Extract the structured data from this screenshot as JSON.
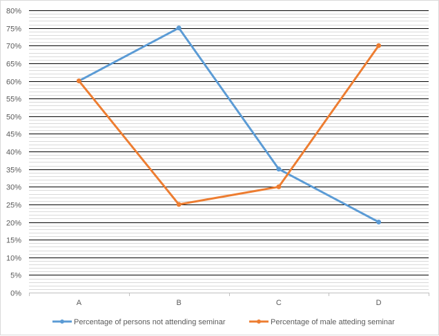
{
  "chart_data": {
    "type": "line",
    "categories": [
      "A",
      "B",
      "C",
      "D"
    ],
    "series": [
      {
        "name": "Percentage of persons not attending seminar",
        "values": [
          60,
          75,
          35,
          20
        ],
        "color": "#5b9bd5"
      },
      {
        "name": "Percentage of male atteding seminar",
        "values": [
          60,
          25,
          30,
          70
        ],
        "color": "#ed7d31"
      }
    ],
    "ylim": [
      0,
      80
    ],
    "y_major_step": 5,
    "y_minor_step": 1,
    "y_tick_suffix": "%",
    "grid": true,
    "legend_position": "bottom",
    "gridline_color": "#000000",
    "minor_gridline_color": "#d9d9d9",
    "axis_color": "#bfbfbf",
    "title": "",
    "xlabel": "",
    "ylabel": ""
  }
}
